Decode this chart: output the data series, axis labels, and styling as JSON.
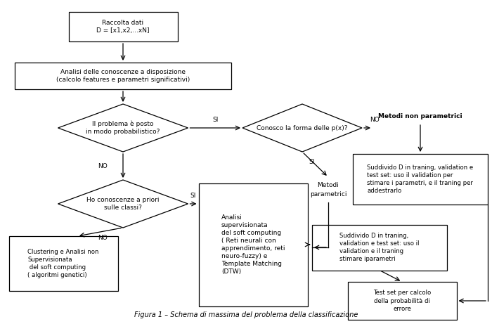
{
  "bg_color": "#ffffff",
  "title": "Figura 1 – Schema di massima del problema della classificazione",
  "raccolta_text": "Raccolta dati\nD = [x1,x2,...xN]",
  "analisi_text": "Analisi delle conoscenze a disposizione\n(calcolo features e parametri significativi)",
  "d1_text": "Il problema è posto\nin modo probabilistico?",
  "d2_text": "Conosco la forma delle p(x)?",
  "mnp_text": "Metodi non parametrici",
  "bnp_text": "Suddivido D in traning, validation e\ntest set: uso il validation per\nstimare i parametri, e il traning per\naddestrarlo",
  "d3_text": "Ho conoscenze a priori\nsulle classi?",
  "as_text": "Analisi\nsupervisionata\ndel soft computing\n( Reti neurali con\napprendimento, reti\nneuro-fuzzy) e\nTemplate Matching\n(DTW)",
  "mp_text": "Metodi\nparametrici",
  "bp_text": "Suddivido D in traning,\nvalidation e test set: uso il\nvalidation e il traning\nstimare iparametri",
  "cl_text": "Clustering e Analisi non\nSupervisionata\n del soft computing\n( algoritmi genetici)",
  "ts_text": "Test set per calcolo\ndella probabilità di\nerrore",
  "si_label": "SI",
  "no_label": "NO",
  "lw": 0.9,
  "fs": 6.5,
  "fs_small": 6.1
}
